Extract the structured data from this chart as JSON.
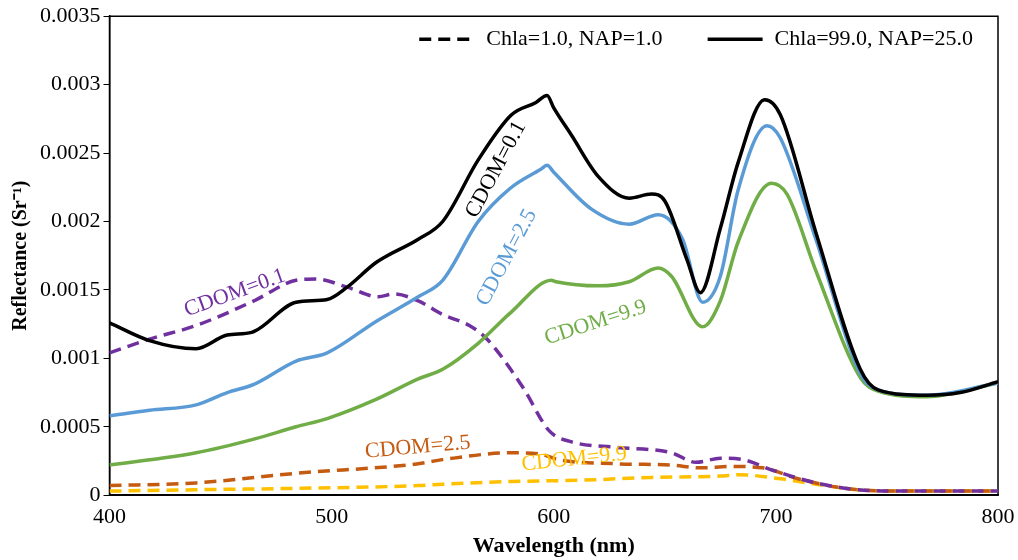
{
  "chart_data": {
    "type": "line",
    "xlabel": "Wavelength (nm)",
    "ylabel": "Reflectance (Sr⁻¹)",
    "xlim": [
      400,
      800
    ],
    "xticks": [
      400,
      500,
      600,
      700,
      800
    ],
    "ylim": [
      0,
      0.0035
    ],
    "yticks": [
      0,
      0.0005,
      0.001,
      0.0015,
      0.002,
      0.0025,
      0.003,
      0.0035
    ],
    "grid": false,
    "legend": "top right",
    "marker": "none",
    "series": [
      {
        "color": "#000000",
        "line_style": "solid",
        "x": [
          400,
          418,
          439,
          453,
          464,
          484,
          498,
          507,
          520,
          539,
          550,
          566,
          581,
          592,
          597,
          600,
          608,
          620,
          634,
          644,
          650,
          660,
          666,
          675,
          683,
          695,
          702,
          718,
          738,
          746,
          768,
          783,
          800
        ],
        "values": [
          0.00126,
          0.00113,
          0.00107,
          0.00117,
          0.00119,
          0.00141,
          0.00143,
          0.00152,
          0.0017,
          0.00187,
          0.002,
          0.00245,
          0.00278,
          0.00287,
          0.00292,
          0.00283,
          0.00263,
          0.00233,
          0.00217,
          0.0022,
          0.00215,
          0.00172,
          0.00148,
          0.00195,
          0.00243,
          0.00289,
          0.00278,
          0.00192,
          0.00092,
          0.00077,
          0.00073,
          0.00075,
          0.00083
        ]
      },
      {
        "color": "#5b9bd5",
        "line_style": "solid",
        "x": [
          400,
          418,
          439,
          453,
          465,
          484,
          498,
          520,
          539,
          550,
          566,
          581,
          594,
          597,
          600,
          617,
          634,
          647,
          658,
          667,
          675,
          683,
          696,
          702,
          718,
          738,
          746,
          768,
          800
        ],
        "values": [
          0.00058,
          0.00062,
          0.00066,
          0.00075,
          0.00081,
          0.00098,
          0.00104,
          0.00127,
          0.00145,
          0.00157,
          0.002,
          0.00225,
          0.00238,
          0.00241,
          0.00236,
          0.00209,
          0.00198,
          0.00205,
          0.00187,
          0.00141,
          0.0016,
          0.00223,
          0.0027,
          0.00261,
          0.00187,
          0.00089,
          0.00077,
          0.00073,
          0.00082
        ]
      },
      {
        "color": "#70ad47",
        "line_style": "solid",
        "x": [
          400,
          439,
          465,
          484,
          498,
          520,
          539,
          550,
          566,
          581,
          599,
          601,
          620,
          634,
          647,
          653,
          667,
          675,
          683,
          698,
          705,
          718,
          738,
          746,
          768,
          800
        ],
        "values": [
          0.00022,
          0.00031,
          0.00041,
          0.0005,
          0.00056,
          0.0007,
          0.00085,
          0.00092,
          0.00111,
          0.00134,
          0.00157,
          0.00156,
          0.00153,
          0.00156,
          0.00166,
          0.0016,
          0.00123,
          0.00142,
          0.00185,
          0.00228,
          0.0022,
          0.00164,
          0.00086,
          0.00076,
          0.00072,
          0.00082
        ]
      },
      {
        "color": "#7030a0",
        "line_style": "dashed",
        "x": [
          400,
          418,
          439,
          465,
          484,
          493,
          507,
          521,
          528,
          539,
          550,
          562,
          570,
          586,
          598,
          608,
          628,
          653,
          664,
          675,
          685,
          699,
          718,
          737,
          760,
          800
        ],
        "values": [
          0.00104,
          0.00114,
          0.00124,
          0.00142,
          0.00157,
          0.00158,
          0.00152,
          0.00145,
          0.00147,
          0.00142,
          0.00132,
          0.00124,
          0.00114,
          0.00079,
          0.00047,
          0.00039,
          0.00035,
          0.00031,
          0.00024,
          0.00027,
          0.00026,
          0.00018,
          9e-05,
          4e-05,
          3e-05,
          3e-05
        ]
      },
      {
        "color": "#c55a11",
        "line_style": "dashed",
        "x": [
          400,
          439,
          484,
          539,
          550,
          581,
          594,
          602,
          628,
          653,
          666,
          680,
          694,
          710,
          737,
          760,
          800
        ],
        "values": [
          7e-05,
          9e-05,
          0.00016,
          0.00023,
          0.00026,
          0.00031,
          0.0003,
          0.00026,
          0.00023,
          0.00022,
          0.0002,
          0.00021,
          0.0002,
          0.00012,
          4e-05,
          3e-05,
          3e-05
        ]
      },
      {
        "color": "#ffc000",
        "line_style": "dashed",
        "x": [
          400,
          439,
          484,
          539,
          550,
          581,
          613,
          644,
          675,
          683,
          702,
          718,
          737,
          760,
          800
        ],
        "values": [
          3e-05,
          4e-05,
          5e-05,
          7e-05,
          8e-05,
          0.0001,
          0.00011,
          0.00013,
          0.00014,
          0.00015,
          0.00012,
          8e-05,
          4e-05,
          3e-05,
          3e-05
        ]
      },
      {
        "name": "Chla=1.0, NAP=1.0",
        "color": "#000000",
        "line_style": "dashed"
      },
      {
        "name": "Chla=99.0, NAP=25.0",
        "color": "#000000",
        "line_style": "solid"
      }
    ],
    "annotations": [
      "CDOM=0.1",
      "CDOM=2.5",
      "CDOM=9.9",
      "CDOM=0.1",
      "CDOM=2.5",
      "CDOM=9.9"
    ]
  }
}
